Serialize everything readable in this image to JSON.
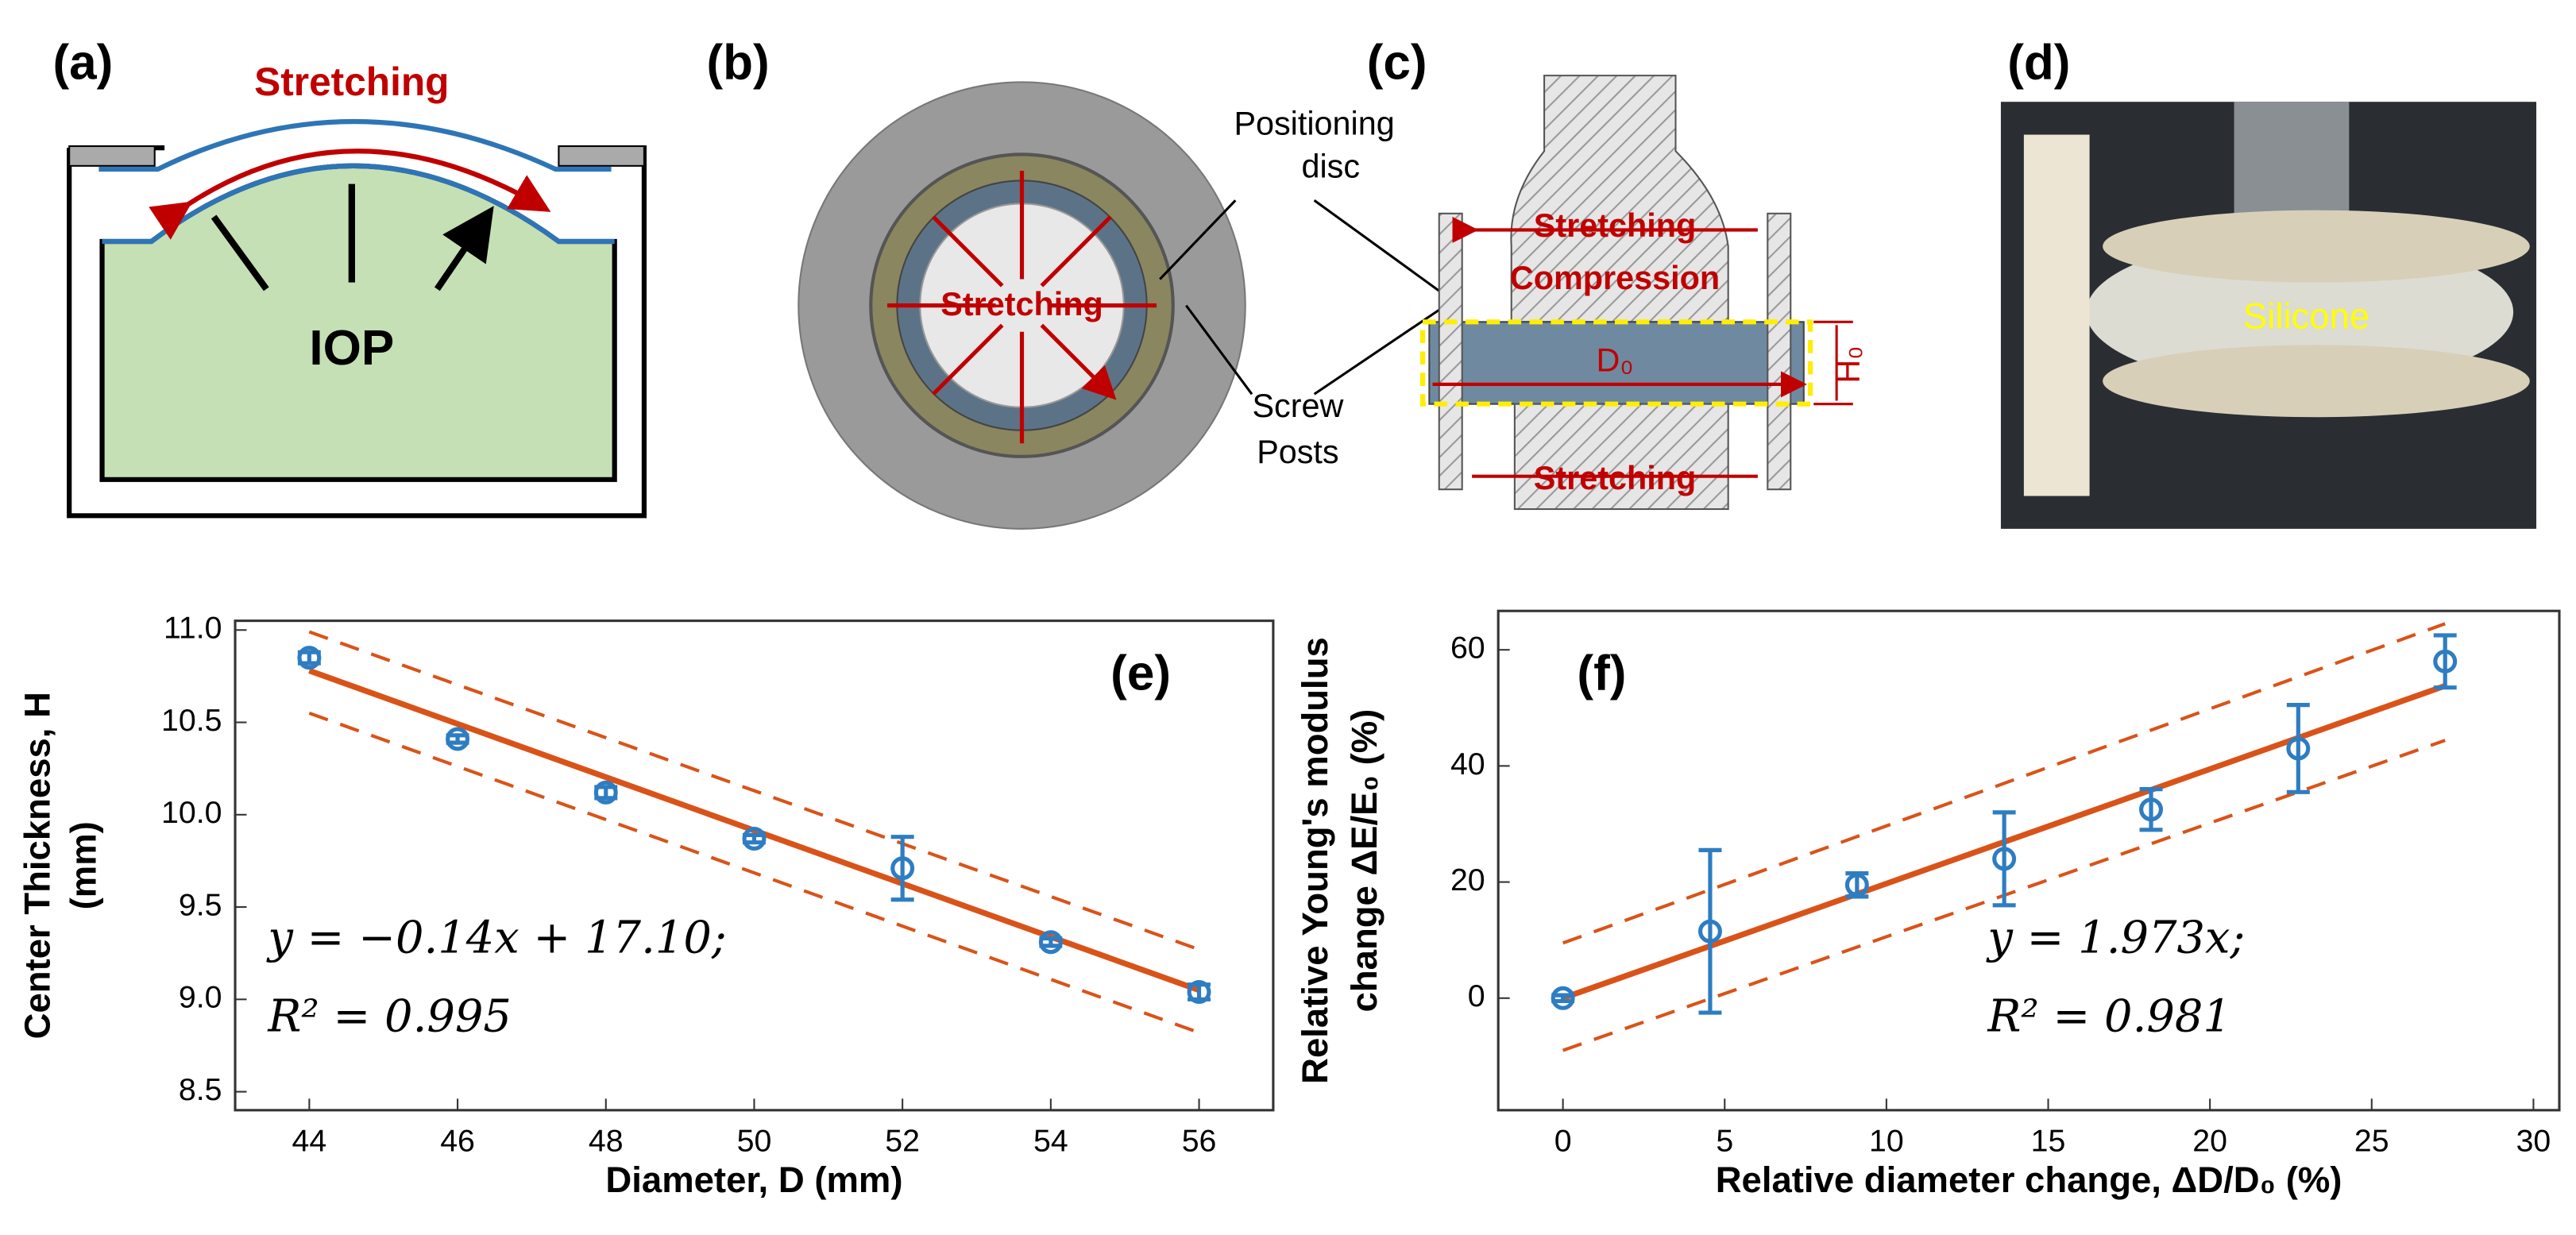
{
  "panels": {
    "a": {
      "label": "(a)",
      "stretching": "Stretching",
      "iop": "IOP"
    },
    "b": {
      "label": "(b)",
      "stretching": "Stretching",
      "positioning": [
        "Positioning",
        "disc"
      ],
      "screw": [
        "Screw",
        "Posts"
      ]
    },
    "c": {
      "label": "(c)",
      "stretching_top": "Stretching",
      "compression": "Compression",
      "d0": "D₀",
      "h0": "H₀",
      "stretching_bottom": "Stretching"
    },
    "d": {
      "label": "(d)",
      "silicone": "Silicone"
    }
  },
  "chart_data": [
    {
      "type": "scatter",
      "panel_label": "(e)",
      "xlabel": "Diameter, D (mm)",
      "ylabel": [
        "Center Thickness, H",
        "(mm)"
      ],
      "annotations": [
        "y = −0.14x + 17.10;",
        "R² = 0.995"
      ],
      "x": [
        44,
        46,
        48,
        50,
        52,
        54,
        56
      ],
      "values": [
        10.85,
        10.41,
        10.12,
        9.87,
        9.71,
        9.31,
        9.04
      ],
      "errors": [
        0.03,
        0.02,
        0.03,
        0.02,
        0.17,
        0.02,
        0.04
      ],
      "color": "#2e7dc2",
      "fit_color": "#d95319",
      "fit": {
        "x": [
          44,
          56
        ],
        "values": [
          10.78,
          9.05
        ]
      },
      "upper": {
        "x": [
          44,
          56
        ],
        "values": [
          10.99,
          9.27
        ]
      },
      "lower": {
        "x": [
          44,
          56
        ],
        "values": [
          10.55,
          8.82
        ]
      },
      "xlim": [
        43,
        57
      ],
      "xticks": [
        44,
        46,
        48,
        50,
        52,
        54,
        56
      ],
      "ylim": [
        8.4,
        11.05
      ],
      "yticks": [
        8.5,
        {
          "value": 9,
          "label": "9.0"
        },
        9.5,
        {
          "value": 10,
          "label": "10.0"
        },
        10.5,
        {
          "value": 11,
          "label": "11.0"
        }
      ]
    },
    {
      "type": "scatter",
      "panel_label": "(f)",
      "xlabel": "Relative diameter change, ΔD/D₀ (%)",
      "ylabel": [
        "Relative Young's modulus",
        "change ΔE/E₀ (%)"
      ],
      "annotations": [
        "y = 1.973x;",
        "R² = 0.981"
      ],
      "x": [
        0,
        4.55,
        9.09,
        13.64,
        18.18,
        22.73,
        27.27
      ],
      "values": [
        0,
        11.5,
        19.5,
        24,
        32.5,
        43,
        58
      ],
      "errors": [
        0.5,
        14,
        2,
        8,
        3.5,
        7.5,
        4.5
      ],
      "color": "#2e7dc2",
      "fit_color": "#d95319",
      "fit": {
        "x": [
          0,
          27.27
        ],
        "values": [
          0,
          53.8
        ]
      },
      "upper": {
        "x": [
          0,
          27.27
        ],
        "values": [
          9.5,
          64.5
        ]
      },
      "lower": {
        "x": [
          0,
          27.27
        ],
        "values": [
          -9,
          44.4
        ]
      },
      "xlim": [
        -2,
        30.8
      ],
      "xticks": [
        0,
        5,
        10,
        15,
        20,
        25,
        30
      ],
      "ylim": [
        -19.3,
        66.7
      ],
      "yticks": [
        0,
        20,
        40,
        60
      ]
    }
  ]
}
